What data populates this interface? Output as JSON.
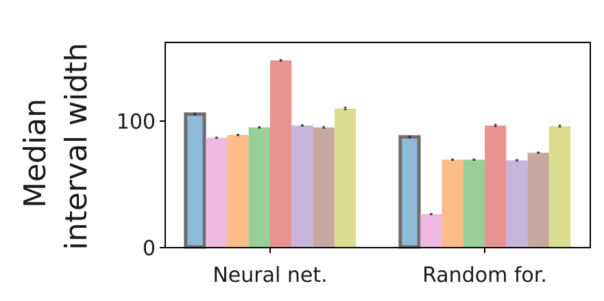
{
  "chart_data": {
    "type": "bar",
    "categories": [
      "Neural net.",
      "Random for."
    ],
    "ylabel": [
      "Median",
      "interval width"
    ],
    "yticks": [
      0,
      100
    ],
    "ylim": [
      0,
      163
    ],
    "grid": false,
    "legend": "none",
    "highlighted_series": 0,
    "series": [
      {
        "color": "#8fbbdb",
        "values": [
          105.5,
          87.5
        ],
        "errors": [
          0.6,
          0.6
        ]
      },
      {
        "color": "#efb8e0",
        "values": [
          86.8,
          26.5
        ],
        "errors": [
          0.5,
          0.4
        ]
      },
      {
        "color": "#fdbd86",
        "values": [
          89.0,
          69.5
        ],
        "errors": [
          0.5,
          0.5
        ]
      },
      {
        "color": "#96d096",
        "values": [
          95.0,
          69.5
        ],
        "errors": [
          0.5,
          0.5
        ]
      },
      {
        "color": "#e99292",
        "values": [
          148.0,
          96.5
        ],
        "errors": [
          0.6,
          0.8
        ]
      },
      {
        "color": "#c9b4de",
        "values": [
          96.5,
          69.0
        ],
        "errors": [
          0.5,
          0.5
        ]
      },
      {
        "color": "#c5a9a1",
        "values": [
          95.0,
          75.0
        ],
        "errors": [
          0.6,
          0.5
        ]
      },
      {
        "color": "#dcdd8e",
        "values": [
          110.0,
          96.0
        ],
        "errors": [
          1.0,
          0.8
        ]
      }
    ]
  }
}
